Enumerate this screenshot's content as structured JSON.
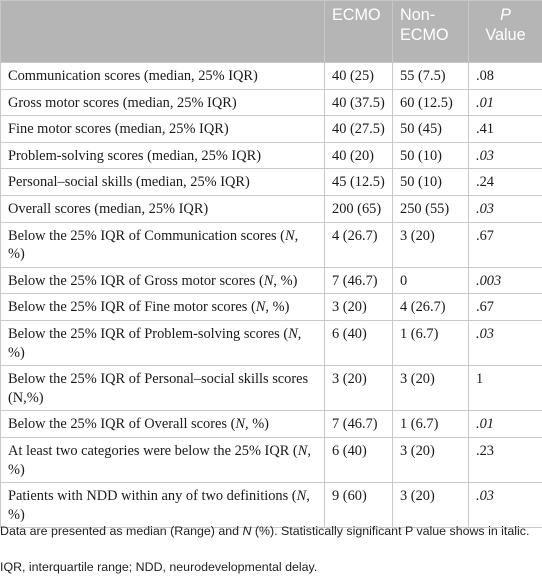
{
  "table": {
    "headers": {
      "blank": "",
      "ecmo": "ECMO",
      "non_ecmo_line1": "Non-",
      "non_ecmo_line2": "ECMO",
      "p_line1": "P",
      "p_line2": "Value"
    },
    "rows": [
      {
        "label": "Communication scores (median, 25% IQR)",
        "ecmo": "40 (25)",
        "non_ecmo": "55 (7.5)",
        "p": ".08",
        "p_italic": false
      },
      {
        "label": "Gross motor scores (median, 25% IQR)",
        "ecmo": "40 (37.5)",
        "non_ecmo": "60 (12.5)",
        "p": ".01",
        "p_italic": true
      },
      {
        "label": "Fine motor scores (median, 25% IQR)",
        "ecmo": "40 (27.5)",
        "non_ecmo": "50 (45)",
        "p": ".41",
        "p_italic": false
      },
      {
        "label": "Problem-solving scores (median, 25% IQR)",
        "ecmo": "40 (20)",
        "non_ecmo": "50 (10)",
        "p": ".03",
        "p_italic": true
      },
      {
        "label": "Personal–social skills (median, 25% IQR)",
        "ecmo": "45 (12.5)",
        "non_ecmo": "50 (10)",
        "p": ".24",
        "p_italic": false
      },
      {
        "label": "Overall scores (median, 25% IQR)",
        "ecmo": "200 (65)",
        "non_ecmo": "250 (55)",
        "p": ".03",
        "p_italic": true
      },
      {
        "label_pre": "Below the 25% IQR of Communication scores (",
        "label_n": "N",
        "label_post": ", %)",
        "ecmo": "4 (26.7)",
        "non_ecmo": "3 (20)",
        "p": ".67",
        "p_italic": false
      },
      {
        "label_pre": "Below the 25% IQR of Gross motor scores (",
        "label_n": "N",
        "label_post": ", %)",
        "ecmo": "7 (46.7)",
        "non_ecmo": "0",
        "p": ".003",
        "p_italic": true
      },
      {
        "label_pre": "Below the 25% IQR of Fine motor scores (",
        "label_n": "N",
        "label_post": ", %)",
        "ecmo": "3 (20)",
        "non_ecmo": "4 (26.7)",
        "p": ".67",
        "p_italic": false
      },
      {
        "label_pre": "Below the 25% IQR of Problem-solving scores (",
        "label_n": "N",
        "label_post": ", %)",
        "ecmo": "6 (40)",
        "non_ecmo": "1 (6.7)",
        "p": ".03",
        "p_italic": true
      },
      {
        "label": "Below the 25% IQR of Personal–social skills scores (N,%)",
        "ecmo": "3 (20)",
        "non_ecmo": "3 (20)",
        "p": "1",
        "p_italic": false
      },
      {
        "label_pre": "Below the 25% IQR of Overall scores (",
        "label_n": "N",
        "label_post": ", %)",
        "ecmo": "7 (46.7)",
        "non_ecmo": "1 (6.7)",
        "p": ".01",
        "p_italic": true
      },
      {
        "label_pre": "At least two categories were below the 25% IQR (",
        "label_n": "N",
        "label_post": ", %)",
        "ecmo": "6 (40)",
        "non_ecmo": "3 (20)",
        "p": ".23",
        "p_italic": false
      },
      {
        "label_pre": "Patients with NDD within any of two definitions (",
        "label_n": "N",
        "label_post": ", %)",
        "ecmo": "9 (60)",
        "non_ecmo": "3 (20)",
        "p": ".03",
        "p_italic": true
      }
    ]
  },
  "footnotes": {
    "line1_pre": "Data are presented as median (Range) and ",
    "line1_n": "N",
    "line1_post": " (%). Statistically significant P value shows in italic.",
    "line2": "IQR, interquartile range; NDD, neurodevelopmental delay."
  }
}
